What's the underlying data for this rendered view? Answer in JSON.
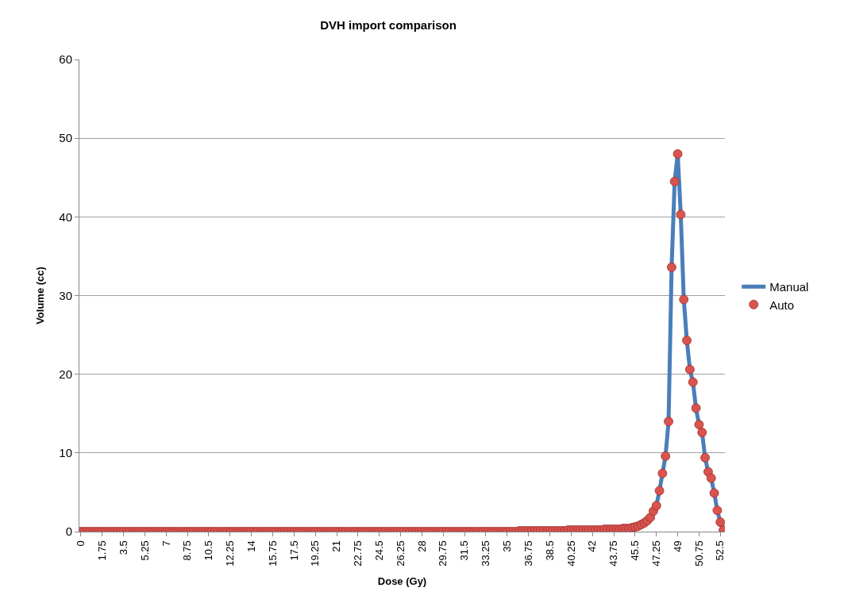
{
  "chart_data": {
    "type": "line",
    "title": "DVH import comparison",
    "xlabel": "Dose (Gy)",
    "ylabel": "Volume (cc)",
    "categories": [
      "0",
      null,
      null,
      null,
      null,
      null,
      null,
      "1.75",
      null,
      null,
      null,
      null,
      null,
      null,
      "3.5",
      null,
      null,
      null,
      null,
      null,
      null,
      "5.25",
      null,
      null,
      null,
      null,
      null,
      null,
      "7",
      null,
      null,
      null,
      null,
      null,
      null,
      "8.75",
      null,
      null,
      null,
      null,
      null,
      null,
      "10.5",
      null,
      null,
      null,
      null,
      null,
      null,
      "12.25",
      null,
      null,
      null,
      null,
      null,
      null,
      "14",
      null,
      null,
      null,
      null,
      null,
      null,
      "15.75",
      null,
      null,
      null,
      null,
      null,
      null,
      "17.5",
      null,
      null,
      null,
      null,
      null,
      null,
      "19.25",
      null,
      null,
      null,
      null,
      null,
      null,
      "21",
      null,
      null,
      null,
      null,
      null,
      null,
      "22.75",
      null,
      null,
      null,
      null,
      null,
      null,
      "24.5",
      null,
      null,
      null,
      null,
      null,
      null,
      "26.25",
      null,
      null,
      null,
      null,
      null,
      null,
      "28",
      null,
      null,
      null,
      null,
      null,
      null,
      "29.75",
      null,
      null,
      null,
      null,
      null,
      null,
      "31.5",
      null,
      null,
      null,
      null,
      null,
      null,
      "33.25",
      null,
      null,
      null,
      null,
      null,
      null,
      "35",
      null,
      null,
      null,
      null,
      null,
      null,
      "36.75",
      null,
      null,
      null,
      null,
      null,
      null,
      "38.5",
      null,
      null,
      null,
      null,
      null,
      null,
      "40.25",
      null,
      null,
      null,
      null,
      null,
      null,
      "42",
      null,
      null,
      null,
      null,
      null,
      null,
      "43.75",
      null,
      null,
      null,
      null,
      null,
      null,
      "45.5",
      null,
      null,
      null,
      null,
      null,
      null,
      "47.25",
      null,
      null,
      null,
      null,
      null,
      null,
      "49",
      null,
      null,
      null,
      null,
      null,
      null,
      "50.75",
      null,
      null,
      null,
      null,
      null,
      null,
      "52.5",
      null
    ],
    "series": [
      {
        "name": "Manual",
        "marker": "none",
        "color": "#4a7ebb",
        "values": [
          null,
          null,
          null,
          null,
          null,
          null,
          null,
          null,
          null,
          null,
          null,
          null,
          null,
          null,
          null,
          null,
          null,
          null,
          null,
          null,
          null,
          null,
          null,
          null,
          null,
          null,
          null,
          null,
          null,
          null,
          null,
          null,
          null,
          null,
          null,
          null,
          null,
          null,
          null,
          null,
          null,
          null,
          null,
          null,
          null,
          null,
          null,
          null,
          null,
          null,
          null,
          null,
          null,
          null,
          null,
          null,
          null,
          null,
          null,
          null,
          null,
          null,
          null,
          null,
          null,
          null,
          null,
          null,
          null,
          null,
          null,
          null,
          null,
          null,
          null,
          null,
          null,
          null,
          null,
          null,
          null,
          null,
          null,
          null,
          null,
          null,
          null,
          null,
          null,
          null,
          null,
          null,
          null,
          null,
          null,
          null,
          null,
          null,
          null,
          null,
          null,
          null,
          null,
          null,
          null,
          null,
          null,
          null,
          null,
          null,
          null,
          null,
          null,
          null,
          null,
          null,
          null,
          null,
          null,
          null,
          null,
          null,
          null,
          null,
          null,
          null,
          null,
          null,
          null,
          null,
          null,
          null,
          null,
          null,
          null,
          null,
          null,
          null,
          null,
          null,
          null,
          null,
          null,
          null,
          null,
          null,
          null,
          null,
          null,
          null,
          null,
          null,
          null,
          null,
          null,
          null,
          null,
          null,
          null,
          null,
          null,
          null,
          null,
          null,
          null,
          null,
          null,
          null,
          null,
          null,
          null,
          null,
          null,
          null,
          null,
          null,
          null,
          null,
          null,
          null,
          null,
          null,
          null,
          null,
          null,
          null,
          null,
          null,
          null,
          3.3,
          5.2,
          7.4,
          9.6,
          14.0,
          33.6,
          44.5,
          48.0,
          40.3,
          29.5,
          24.3,
          20.6,
          19.0,
          15.7,
          13.6,
          12.6,
          9.4,
          7.6,
          6.8,
          4.9,
          2.7,
          1.2,
          0.2
        ]
      },
      {
        "name": "Auto",
        "type": "scatter",
        "marker": "circle",
        "color": "#d9534f",
        "values": [
          0,
          0,
          0,
          0,
          0,
          0,
          0,
          0,
          0,
          0,
          0,
          0,
          0,
          0,
          0,
          0,
          0,
          0,
          0,
          0,
          0,
          0,
          0,
          0,
          0,
          0,
          0,
          0,
          0,
          0,
          0,
          0,
          0,
          0,
          0,
          0,
          0,
          0,
          0,
          0,
          0,
          0,
          0,
          0,
          0,
          0,
          0,
          0,
          0,
          0,
          0,
          0,
          0,
          0,
          0,
          0,
          0,
          0,
          0,
          0,
          0,
          0,
          0,
          0,
          0,
          0,
          0,
          0,
          0,
          0,
          0,
          0,
          0,
          0,
          0,
          0,
          0,
          0,
          0,
          0,
          0,
          0,
          0,
          0,
          0,
          0,
          0,
          0,
          0,
          0,
          0,
          0,
          0,
          0,
          0,
          0,
          0,
          0,
          0,
          0,
          0,
          0,
          0,
          0,
          0,
          0,
          0,
          0,
          0,
          0,
          0,
          0,
          0,
          0,
          0,
          0,
          0,
          0,
          0,
          0,
          0,
          0,
          0,
          0,
          0,
          0,
          0,
          0,
          0,
          0,
          0,
          0,
          0,
          0,
          0,
          0,
          0,
          0,
          0,
          0,
          0,
          0,
          0,
          0,
          0.1,
          0.1,
          0.1,
          0.1,
          0.1,
          0.1,
          0.1,
          0.1,
          0.1,
          0.1,
          0.1,
          0.1,
          0.1,
          0.1,
          0.1,
          0.1,
          0.2,
          0.2,
          0.2,
          0.2,
          0.2,
          0.2,
          0.2,
          0.2,
          0.2,
          0.2,
          0.2,
          0.2,
          0.3,
          0.3,
          0.3,
          0.3,
          0.3,
          0.3,
          0.4,
          0.4,
          0.4,
          0.5,
          0.6,
          0.7,
          0.9,
          1.1,
          1.4,
          1.8,
          2.6,
          3.3,
          5.2,
          7.4,
          9.6,
          14.0,
          33.6,
          44.5,
          48.0,
          40.3,
          29.5,
          24.3,
          20.6,
          19.0,
          15.7,
          13.6,
          12.6,
          9.4,
          7.6,
          6.8,
          4.9,
          2.7,
          1.2,
          0.2
        ]
      }
    ],
    "ylim": [
      0,
      60
    ],
    "yticks": [
      0,
      10,
      20,
      30,
      40,
      50,
      60
    ],
    "grid": "y",
    "legend": "right"
  }
}
